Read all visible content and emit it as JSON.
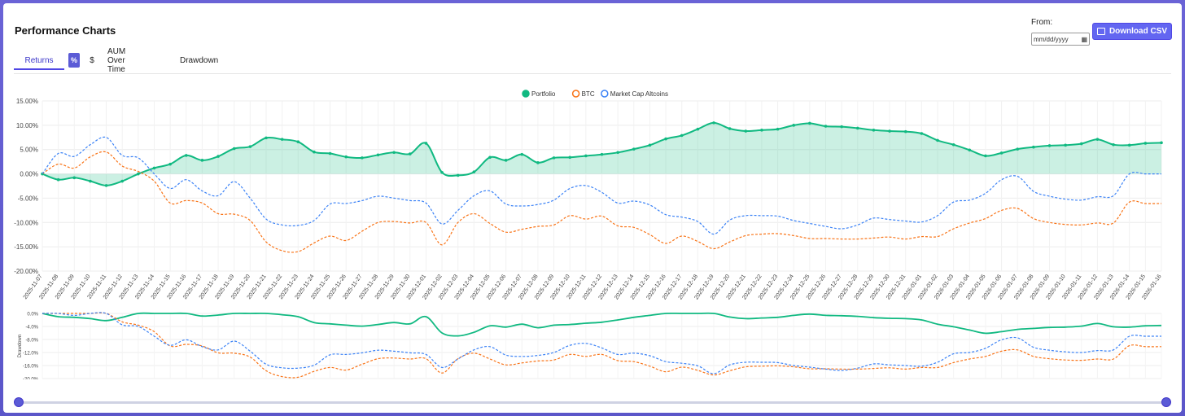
{
  "header": {
    "title": "Performance Charts",
    "from_label": "From:",
    "date_placeholder": "mm/dd/yyyy",
    "download_label": "Download CSV"
  },
  "tabs": {
    "returns": "Returns",
    "pct": "%",
    "usd": "$",
    "aum": "AUM Over Time",
    "drawdown": "Drawdown"
  },
  "colors": {
    "portfolio": "#10b981",
    "btc": "#f97316",
    "alt": "#3b82f6",
    "accent": "#6366f1"
  },
  "chart_data": [
    {
      "type": "line",
      "title": "",
      "legend": [
        "Portfolio",
        "BTC",
        "Market Cap Altcoins"
      ],
      "legend_position": "top-center",
      "ylim": [
        -20,
        15
      ],
      "yticks": [
        "15.00%",
        "10.00%",
        "5.00%",
        "0.00%",
        "-5.00%",
        "-10.00%",
        "-15.00%",
        "-20.00%"
      ],
      "ytick_values": [
        15,
        10,
        5,
        0,
        -5,
        -10,
        -15,
        -20
      ],
      "categories": [
        "2025-11-07",
        "2025-11-08",
        "2025-11-09",
        "2025-11-10",
        "2025-11-11",
        "2025-11-12",
        "2025-11-13",
        "2025-11-14",
        "2025-11-15",
        "2025-11-16",
        "2025-11-17",
        "2025-11-18",
        "2025-11-19",
        "2025-11-20",
        "2025-11-21",
        "2025-11-22",
        "2025-11-23",
        "2025-11-24",
        "2025-11-25",
        "2025-11-26",
        "2025-11-27",
        "2025-11-28",
        "2025-11-29",
        "2025-11-30",
        "2025-12-01",
        "2025-12-02",
        "2025-12-03",
        "2025-12-04",
        "2025-12-05",
        "2025-12-06",
        "2025-12-07",
        "2025-12-08",
        "2025-12-09",
        "2025-12-10",
        "2025-12-11",
        "2025-12-12",
        "2025-12-13",
        "2025-12-14",
        "2025-12-15",
        "2025-12-16",
        "2025-12-17",
        "2025-12-18",
        "2025-12-19",
        "2025-12-20",
        "2025-12-21",
        "2025-12-22",
        "2025-12-23",
        "2025-12-24",
        "2025-12-25",
        "2025-12-26",
        "2025-12-27",
        "2025-12-28",
        "2025-12-29",
        "2025-12-30",
        "2025-12-31",
        "2026-01-01",
        "2026-01-02",
        "2026-01-03",
        "2026-01-04",
        "2026-01-05",
        "2026-01-06",
        "2026-01-07",
        "2026-01-08",
        "2026-01-09",
        "2026-01-10",
        "2026-01-11",
        "2026-01-12",
        "2026-01-13",
        "2026-01-14",
        "2026-01-15",
        "2026-01-16"
      ],
      "series": [
        {
          "name": "Portfolio",
          "values": [
            0.0,
            -1.2,
            -0.8,
            -1.5,
            -2.4,
            -1.5,
            0.0,
            1.2,
            2.0,
            3.8,
            2.8,
            3.6,
            5.2,
            5.6,
            7.4,
            7.1,
            6.6,
            4.5,
            4.2,
            3.5,
            3.3,
            3.9,
            4.4,
            4.1,
            6.3,
            0.3,
            -0.3,
            0.4,
            3.4,
            2.8,
            4.0,
            2.3,
            3.3,
            3.4,
            3.7,
            4.0,
            4.4,
            5.1,
            5.9,
            7.2,
            7.9,
            9.2,
            10.5,
            9.3,
            8.8,
            9.0,
            9.2,
            10.0,
            10.4,
            9.8,
            9.7,
            9.4,
            9.0,
            8.8,
            8.7,
            8.3,
            6.9,
            6.0,
            4.9,
            3.7,
            4.3,
            5.1,
            5.5,
            5.8,
            5.9,
            6.2,
            7.1,
            6.0,
            5.9,
            6.3,
            6.4
          ]
        },
        {
          "name": "BTC",
          "values": [
            0.0,
            2.0,
            1.2,
            3.5,
            4.5,
            1.6,
            0.5,
            -1.5,
            -6.0,
            -5.5,
            -6.0,
            -8.2,
            -8.3,
            -9.6,
            -14.0,
            -15.8,
            -16.0,
            -14.2,
            -12.8,
            -13.7,
            -11.8,
            -10.0,
            -9.8,
            -10.1,
            -10.0,
            -14.6,
            -10.0,
            -8.2,
            -10.2,
            -12.0,
            -11.4,
            -10.8,
            -10.5,
            -8.6,
            -9.3,
            -8.7,
            -10.7,
            -11.0,
            -12.5,
            -14.3,
            -12.8,
            -13.9,
            -15.4,
            -14.0,
            -12.7,
            -12.4,
            -12.3,
            -12.7,
            -13.3,
            -13.3,
            -13.4,
            -13.4,
            -13.2,
            -13.0,
            -13.4,
            -12.9,
            -12.9,
            -11.3,
            -10.1,
            -9.2,
            -7.5,
            -7.1,
            -9.2,
            -10.0,
            -10.4,
            -10.5,
            -10.1,
            -10.1,
            -5.8,
            -6.1,
            -6.1
          ]
        },
        {
          "name": "Market Cap Altcoins",
          "values": [
            0.0,
            4.2,
            3.6,
            6.0,
            7.5,
            3.8,
            3.3,
            0.0,
            -3.0,
            -1.2,
            -3.5,
            -4.5,
            -1.6,
            -5.0,
            -9.3,
            -10.5,
            -10.6,
            -9.6,
            -6.2,
            -6.1,
            -5.5,
            -4.6,
            -5.0,
            -5.5,
            -6.0,
            -10.3,
            -7.5,
            -4.5,
            -3.5,
            -6.2,
            -6.6,
            -6.3,
            -5.4,
            -3.0,
            -2.4,
            -3.8,
            -6.0,
            -5.6,
            -6.4,
            -8.4,
            -8.9,
            -9.8,
            -12.4,
            -9.5,
            -8.6,
            -8.6,
            -8.7,
            -9.6,
            -10.2,
            -10.8,
            -11.3,
            -10.5,
            -9.1,
            -9.4,
            -9.7,
            -9.9,
            -8.6,
            -5.8,
            -5.4,
            -4.0,
            -1.2,
            -0.5,
            -3.6,
            -4.6,
            -5.2,
            -5.4,
            -4.7,
            -4.5,
            0.0,
            0.0,
            0.0
          ]
        }
      ]
    },
    {
      "type": "line",
      "title": "",
      "ylabel": "Drawdown",
      "ylim": [
        -20,
        0
      ],
      "yticks": [
        "0.0%",
        "-4.0%",
        "-8.0%",
        "-12.0%",
        "-16.0%",
        "-20.0%"
      ],
      "ytick_values": [
        0,
        -4,
        -8,
        -12,
        -16,
        -20
      ],
      "series": [
        {
          "name": "Portfolio",
          "values": [
            0.0,
            -1.0,
            -1.2,
            -1.6,
            -2.2,
            -1.2,
            0.0,
            0.0,
            0.0,
            0.0,
            -0.8,
            -0.5,
            0.0,
            0.0,
            0.0,
            -0.4,
            -1.0,
            -2.8,
            -3.2,
            -3.6,
            -3.9,
            -3.4,
            -2.8,
            -3.2,
            -1.0,
            -6.0,
            -6.9,
            -5.8,
            -3.8,
            -4.2,
            -3.3,
            -4.4,
            -3.6,
            -3.4,
            -3.0,
            -2.7,
            -2.0,
            -1.2,
            -0.6,
            0.0,
            0.0,
            0.0,
            0.0,
            -1.1,
            -1.6,
            -1.4,
            -1.2,
            -0.6,
            -0.2,
            -0.6,
            -0.7,
            -0.9,
            -1.3,
            -1.5,
            -1.6,
            -2.0,
            -3.3,
            -4.1,
            -5.1,
            -6.1,
            -5.6,
            -4.9,
            -4.6,
            -4.3,
            -4.2,
            -3.9,
            -3.1,
            -4.1,
            -4.2,
            -3.8,
            -3.7
          ]
        },
        {
          "name": "BTC",
          "values": [
            0.0,
            0.0,
            0.0,
            0.0,
            0.0,
            -2.6,
            -3.6,
            -5.6,
            -10.0,
            -9.5,
            -10.0,
            -12.1,
            -12.2,
            -13.4,
            -17.6,
            -19.4,
            -19.6,
            -17.8,
            -16.6,
            -17.4,
            -15.6,
            -13.9,
            -13.7,
            -14.0,
            -13.9,
            -18.3,
            -13.9,
            -12.2,
            -14.0,
            -15.8,
            -15.2,
            -14.6,
            -14.3,
            -12.6,
            -13.2,
            -12.6,
            -14.5,
            -14.8,
            -16.2,
            -17.9,
            -16.5,
            -17.5,
            -18.9,
            -17.6,
            -16.4,
            -16.2,
            -16.1,
            -16.4,
            -17.0,
            -17.0,
            -17.1,
            -17.1,
            -16.9,
            -16.7,
            -17.1,
            -16.6,
            -16.6,
            -15.1,
            -14.0,
            -13.2,
            -11.6,
            -11.2,
            -13.2,
            -13.9,
            -14.3,
            -14.4,
            -14.0,
            -14.0,
            -9.9,
            -10.2,
            -10.2
          ]
        },
        {
          "name": "Market Cap Altcoins",
          "values": [
            0.0,
            0.0,
            -0.6,
            0.0,
            0.0,
            -3.5,
            -4.0,
            -7.0,
            -9.8,
            -8.1,
            -10.2,
            -11.2,
            -8.5,
            -11.6,
            -15.6,
            -16.7,
            -16.8,
            -15.9,
            -12.7,
            -12.6,
            -12.1,
            -11.3,
            -11.6,
            -12.1,
            -12.6,
            -16.6,
            -14.0,
            -11.2,
            -10.2,
            -12.8,
            -13.2,
            -12.9,
            -12.0,
            -9.8,
            -9.2,
            -10.6,
            -12.6,
            -12.2,
            -13.0,
            -14.8,
            -15.3,
            -16.1,
            -18.5,
            -15.8,
            -15.0,
            -15.0,
            -15.1,
            -16.0,
            -16.5,
            -17.1,
            -17.5,
            -16.8,
            -15.5,
            -15.8,
            -16.0,
            -16.2,
            -15.0,
            -12.4,
            -12.0,
            -10.7,
            -8.1,
            -7.5,
            -10.4,
            -11.3,
            -11.8,
            -12.0,
            -11.4,
            -11.2,
            -7.0,
            -7.0,
            -7.0
          ]
        }
      ]
    }
  ]
}
